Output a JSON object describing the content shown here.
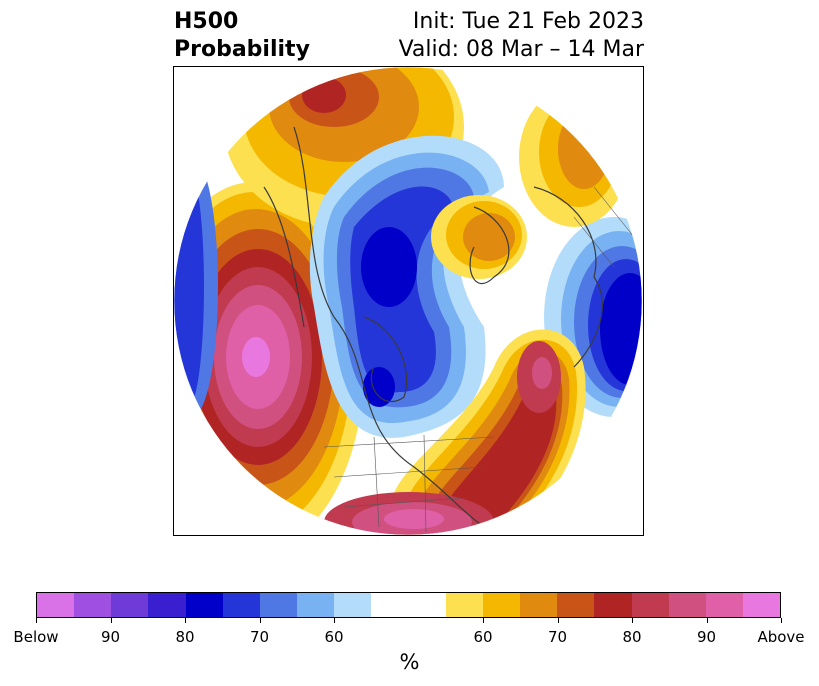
{
  "header": {
    "title_line1": "H500",
    "title_line2": "Probability",
    "init_label": "Init: Tue 21 Feb 2023",
    "valid_label": "Valid: 08 Mar – 14 Mar"
  },
  "colorbar": {
    "unit": "%",
    "colors": [
      "#d872e6",
      "#a050e0",
      "#6f3bd8",
      "#3a1fd0",
      "#0000c8",
      "#2436d8",
      "#4f78e4",
      "#78b2f2",
      "#b2dcfa",
      "#ffffff",
      "#ffffff",
      "#fde050",
      "#f4b800",
      "#e08a10",
      "#c85418",
      "#b02424",
      "#c03a50",
      "#d05080",
      "#e060a8",
      "#e878e0"
    ],
    "tick_labels": [
      "Below",
      "90",
      "80",
      "70",
      "60",
      "60",
      "70",
      "80",
      "90",
      "Above"
    ]
  },
  "map": {
    "projection": "north-polar-stereographic",
    "palette": {
      "below": [
        "#b2dcfa",
        "#78b2f2",
        "#4f78e4",
        "#2436d8",
        "#0000c8"
      ],
      "above": [
        "#fde050",
        "#f4b800",
        "#e08a10",
        "#c85418",
        "#b02424",
        "#c03a50",
        "#d05080",
        "#e060a8",
        "#e878e0"
      ]
    }
  }
}
